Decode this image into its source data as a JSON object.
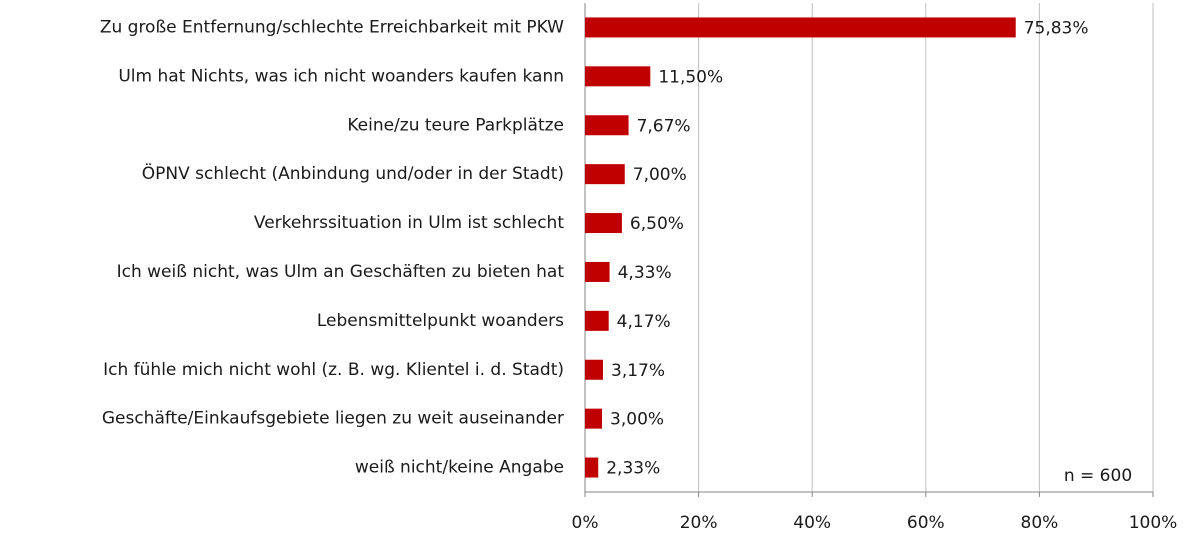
{
  "chart_data": {
    "type": "bar",
    "orientation": "horizontal",
    "categories": [
      "Zu große Entfernung/schlechte Erreichbarkeit mit PKW",
      "Ulm hat Nichts, was ich nicht woanders kaufen kann",
      "Keine/zu teure Parkplätze",
      "ÖPNV schlecht (Anbindung und/oder in der Stadt)",
      "Verkehrssituation in Ulm ist schlecht",
      "Ich weiß nicht, was Ulm an Geschäften zu bieten hat",
      "Lebensmittelpunkt woanders",
      "Ich fühle mich nicht wohl (z. B. wg. Klientel i. d. Stadt)",
      "Geschäfte/Einkaufsgebiete liegen zu weit auseinander",
      "weiß nicht/keine Angabe"
    ],
    "values": [
      75.83,
      11.5,
      7.67,
      7.0,
      6.5,
      4.33,
      4.17,
      3.17,
      3.0,
      2.33
    ],
    "value_labels": [
      "75,83%",
      "11,50%",
      "7,67%",
      "7,00%",
      "6,50%",
      "4,33%",
      "4,17%",
      "3,17%",
      "3,00%",
      "2,33%"
    ],
    "color": "#c00000",
    "xlim": [
      0,
      100
    ],
    "xticks": [
      {
        "value": 0,
        "label": "0%"
      },
      {
        "value": 20,
        "label": "20%"
      },
      {
        "value": 40,
        "label": "40%"
      },
      {
        "value": 60,
        "label": "60%"
      },
      {
        "value": 80,
        "label": "80%"
      },
      {
        "value": 100,
        "label": "100%"
      }
    ],
    "grid": true,
    "annotation": "n = 600"
  }
}
